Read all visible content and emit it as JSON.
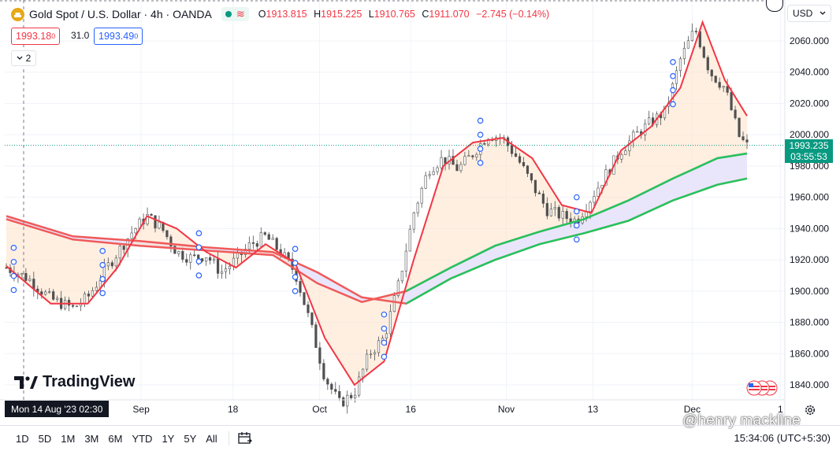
{
  "header": {
    "symbol_title": "Gold Spot / U.S. Dollar · 4h · OANDA",
    "status_icon": "market-open-dot",
    "wave_icon": "≋",
    "ohlc": [
      {
        "k": "O",
        "v": "1913.815"
      },
      {
        "k": "H",
        "v": "1915.225"
      },
      {
        "k": "L",
        "v": "1910.765"
      },
      {
        "k": "C",
        "v": "1911.070"
      }
    ],
    "change": "−2.745 (−0.14%)"
  },
  "trade": {
    "sell_price": "1993.18",
    "sell_sup": "0",
    "spread": "31.0",
    "buy_price": "1993.49",
    "buy_sup": "0"
  },
  "indicators": {
    "collapsed_count": "2"
  },
  "currency": "USD",
  "current_price": {
    "price": "1993.235",
    "countdown": "03:55:53",
    "color": "#089981"
  },
  "crosshair_time": "Mon 14 Aug '23   02:30",
  "branding": "TradingView",
  "ranges": [
    "1D",
    "5D",
    "1M",
    "3M",
    "6M",
    "YTD",
    "1Y",
    "5Y",
    "All"
  ],
  "clock": "15:34:06 (UTC+5:30)",
  "watermark": "@henry mackline",
  "chart_data": {
    "type": "candlestick",
    "y_axis": {
      "min": 1830,
      "max": 2080,
      "ticks": [
        1840,
        1860,
        1880,
        1900,
        1920,
        1940,
        1960,
        1980,
        2000,
        2020,
        2040,
        2060
      ],
      "tick_labels": [
        "1840.000",
        "1860.000",
        "1880.000",
        "1900.000",
        "1920.000",
        "1940.000",
        "1960.000",
        "1980.000",
        "2000.000",
        "2020.000",
        "2040.000",
        "2060.000"
      ]
    },
    "x_axis": {
      "index_range": [
        0,
        100
      ],
      "labels": [
        {
          "i": 18.2,
          "text": "Sep"
        },
        {
          "i": 30.6,
          "text": "18"
        },
        {
          "i": 42.3,
          "text": "Oct"
        },
        {
          "i": 54.6,
          "text": "16"
        },
        {
          "i": 67.5,
          "text": "Nov"
        },
        {
          "i": 79.2,
          "text": "13"
        },
        {
          "i": 92.6,
          "text": "Dec"
        },
        {
          "i": 104.5,
          "text": "1"
        }
      ]
    },
    "close_path": [
      [
        0,
        1915
      ],
      [
        3,
        1908
      ],
      [
        6,
        1895
      ],
      [
        9,
        1889
      ],
      [
        11,
        1896
      ],
      [
        14,
        1918
      ],
      [
        17,
        1938
      ],
      [
        19,
        1948
      ],
      [
        21,
        1940
      ],
      [
        23,
        1925
      ],
      [
        25,
        1921
      ],
      [
        27,
        1923
      ],
      [
        29,
        1912
      ],
      [
        31,
        1920
      ],
      [
        33,
        1930
      ],
      [
        35,
        1935
      ],
      [
        37,
        1925
      ],
      [
        39,
        1912
      ],
      [
        41,
        1880
      ],
      [
        43,
        1845
      ],
      [
        45,
        1828
      ],
      [
        47,
        1835
      ],
      [
        49,
        1860
      ],
      [
        51,
        1870
      ],
      [
        53,
        1905
      ],
      [
        55,
        1950
      ],
      [
        57,
        1978
      ],
      [
        59,
        1985
      ],
      [
        61,
        1978
      ],
      [
        63,
        1988
      ],
      [
        65,
        2000
      ],
      [
        67,
        1998
      ],
      [
        69,
        1985
      ],
      [
        71,
        1968
      ],
      [
        73,
        1952
      ],
      [
        75,
        1948
      ],
      [
        77,
        1945
      ],
      [
        79,
        1960
      ],
      [
        81,
        1975
      ],
      [
        83,
        1990
      ],
      [
        85,
        2000
      ],
      [
        87,
        2008
      ],
      [
        89,
        2015
      ],
      [
        91,
        2048
      ],
      [
        93,
        2068
      ],
      [
        95,
        2040
      ],
      [
        97,
        2030
      ],
      [
        99,
        1998
      ],
      [
        100,
        1993
      ]
    ],
    "series": [
      {
        "values": [
          [
            0,
            1948
          ],
          [
            9,
            1935
          ],
          [
            18,
            1932
          ],
          [
            27,
            1928
          ],
          [
            36,
            1925
          ],
          [
            42,
            1912
          ],
          [
            48,
            1896
          ],
          [
            54,
            1892
          ],
          [
            60,
            1908
          ],
          [
            66,
            1920
          ],
          [
            72,
            1930
          ],
          [
            78,
            1937
          ],
          [
            84,
            1945
          ],
          [
            90,
            1958
          ],
          [
            96,
            1968
          ],
          [
            100,
            1972
          ]
        ],
        "color": "#22c55e"
      },
      {
        "values": [
          [
            0,
            1946
          ],
          [
            9,
            1933
          ],
          [
            18,
            1929
          ],
          [
            27,
            1926
          ],
          [
            36,
            1923
          ],
          [
            42,
            1905
          ],
          [
            48,
            1893
          ],
          [
            54,
            1900
          ],
          [
            60,
            1915
          ],
          [
            66,
            1929
          ],
          [
            72,
            1938
          ],
          [
            78,
            1946
          ],
          [
            84,
            1958
          ],
          [
            90,
            1972
          ],
          [
            96,
            1985
          ],
          [
            100,
            1988
          ]
        ],
        "color": "#22c55e"
      },
      {
        "values": [
          [
            0,
            1916
          ],
          [
            6,
            1892
          ],
          [
            11,
            1892
          ],
          [
            15,
            1915
          ],
          [
            19,
            1948
          ],
          [
            23,
            1940
          ],
          [
            27,
            1925
          ],
          [
            31,
            1915
          ],
          [
            35,
            1930
          ],
          [
            39,
            1918
          ],
          [
            43,
            1870
          ],
          [
            47,
            1840
          ],
          [
            51,
            1855
          ],
          [
            55,
            1920
          ],
          [
            59,
            1980
          ],
          [
            63,
            1995
          ],
          [
            67,
            1998
          ],
          [
            71,
            1985
          ],
          [
            75,
            1955
          ],
          [
            79,
            1950
          ],
          [
            83,
            1990
          ],
          [
            87,
            2005
          ],
          [
            91,
            2030
          ],
          [
            94,
            2072
          ],
          [
            97,
            2035
          ],
          [
            100,
            2012
          ]
        ],
        "color": "#f23645"
      }
    ],
    "legend": "none",
    "grid": true
  }
}
